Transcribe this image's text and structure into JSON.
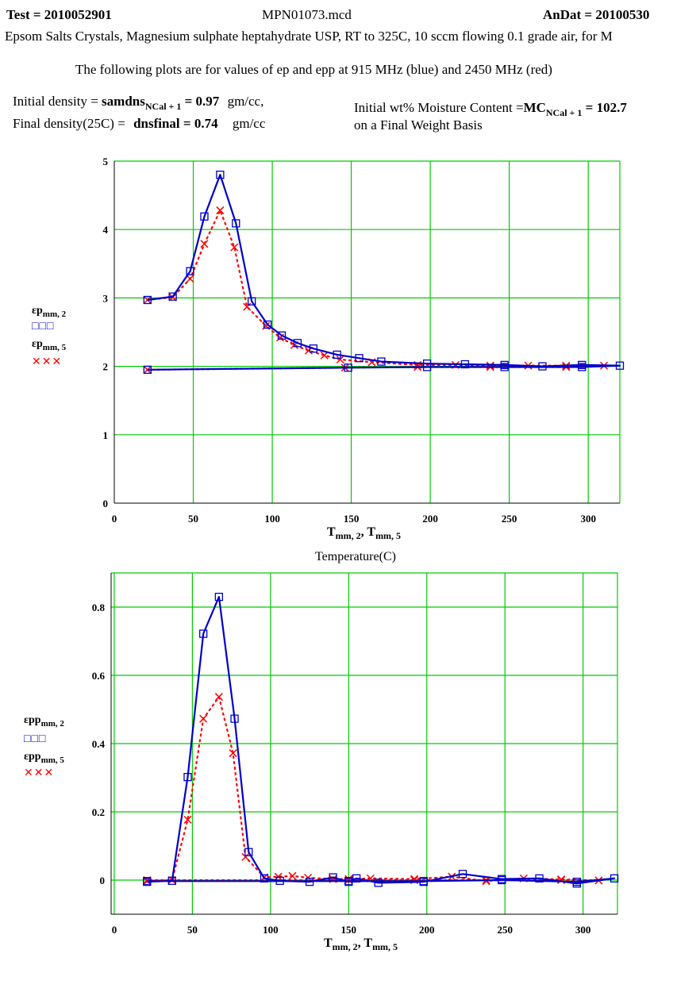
{
  "header": {
    "test_label": "Test = 2010052901",
    "file_name": "MPN01073.mcd",
    "andat_label": "AnDat = 20100530",
    "description": "Epsom Salts Crystals, Magnesium sulphate heptahydrate USP, RT to 325C, 10 sccm flowing 0.1 grade air, for M",
    "plots_note": "The following plots are for values of ep and epp at 915 MHz (blue)  and 2450 MHz (red)"
  },
  "params": {
    "initial_density_label": "Initial density =",
    "initial_density_var": "samdns",
    "initial_density_sub": "NCal + 1",
    "initial_density_value": "= 0.97",
    "initial_density_unit": "gm/cc,",
    "final_density_label": "Final density(25C) =",
    "final_density_var": "dnsfinal",
    "final_density_value": "= 0.74",
    "final_density_unit": "gm/cc",
    "moisture_label": "Initial wt% Moisture Content =",
    "moisture_var": "MC",
    "moisture_sub": "NCal + 1",
    "moisture_value": "= 102.7",
    "moisture_basis": "on a Final Weight Basis"
  },
  "colors": {
    "blue": "#0000cc",
    "red": "#ff0000",
    "grid": "#00cc00"
  },
  "chart_data": [
    {
      "type": "line",
      "xlim": [
        0,
        320
      ],
      "ylim": [
        0,
        5
      ],
      "xticks": [
        0,
        50,
        100,
        150,
        200,
        250,
        300
      ],
      "yticks": [
        0,
        1,
        2,
        3,
        4,
        5
      ],
      "xtick_labels": [
        "0",
        "50",
        "100",
        "150",
        "200",
        "250",
        "300"
      ],
      "ytick_labels": [
        "0",
        "1",
        "2",
        "3",
        "4",
        "5"
      ],
      "xlabel_main": "T",
      "xlabel_sub1": "mm, 2",
      "xlabel_sep": ", T",
      "xlabel_sub2": "mm, 5",
      "xlabel_caption": "Temperature(C)",
      "legend": [
        {
          "name_main": "εp",
          "name_sub": "mm, 2",
          "marker": "□□□"
        },
        {
          "name_main": "εp",
          "name_sub": "mm, 5",
          "marker": "✕✕✕"
        }
      ],
      "series": [
        {
          "name": "915 MHz (blue)",
          "color": "blue",
          "marker": "square",
          "dash": false,
          "x": [
            21,
            37,
            48,
            57,
            67,
            77,
            87,
            97,
            106,
            116,
            126,
            141,
            155,
            169,
            198,
            222,
            247,
            271,
            296,
            320,
            296,
            247,
            198,
            148,
            21
          ],
          "y": [
            2.97,
            3.02,
            3.39,
            4.19,
            4.8,
            4.09,
            2.95,
            2.61,
            2.45,
            2.34,
            2.26,
            2.17,
            2.12,
            2.07,
            2.04,
            2.03,
            2.02,
            2.0,
            2.02,
            2.01,
            1.99,
            1.99,
            1.99,
            1.98,
            1.95
          ]
        },
        {
          "name": "2450 MHz (red)",
          "color": "red",
          "marker": "x",
          "dash": true,
          "x": [
            21,
            37,
            48,
            57,
            67,
            76,
            84,
            96,
            105,
            114,
            123,
            133,
            143,
            163,
            192,
            216,
            238,
            262,
            286,
            310,
            286,
            238,
            192,
            146,
            21
          ],
          "y": [
            2.97,
            3.01,
            3.28,
            3.79,
            4.28,
            3.74,
            2.87,
            2.59,
            2.42,
            2.31,
            2.23,
            2.16,
            2.1,
            2.06,
            2.02,
            2.02,
            2.01,
            2.01,
            2.01,
            2.01,
            1.99,
            1.99,
            1.99,
            1.98,
            1.95
          ]
        }
      ]
    },
    {
      "type": "line",
      "xlim": [
        -2,
        322
      ],
      "ylim": [
        -0.1,
        0.9
      ],
      "xticks": [
        0,
        50,
        100,
        150,
        200,
        250,
        300
      ],
      "yticks": [
        0,
        0.2,
        0.4,
        0.6,
        0.8
      ],
      "xtick_labels": [
        "0",
        "50",
        "100",
        "150",
        "200",
        "250",
        "300"
      ],
      "ytick_labels": [
        "0",
        "0.2",
        "0.4",
        "0.6",
        "0.8"
      ],
      "xlabel_main": "T",
      "xlabel_sub1": "mm, 2",
      "xlabel_sep": ", T",
      "xlabel_sub2": "mm, 5",
      "legend": [
        {
          "name_main": "εpp",
          "name_sub": "mm, 2",
          "marker": "□□□"
        },
        {
          "name_main": "εpp",
          "name_sub": "mm, 5",
          "marker": "✕✕✕"
        }
      ],
      "series": [
        {
          "name": "915 MHz (blue)",
          "color": "blue",
          "marker": "square",
          "dash": false,
          "x": [
            21,
            37,
            47,
            57,
            67,
            77,
            86,
            96,
            106,
            125,
            140,
            150,
            155,
            169,
            198,
            223,
            248,
            272,
            296,
            320,
            296,
            248,
            198,
            150,
            21
          ],
          "y": [
            -0.005,
            -0.002,
            0.302,
            0.722,
            0.83,
            0.473,
            0.082,
            0.005,
            -0.002,
            -0.005,
            0.008,
            -0.005,
            0.005,
            -0.008,
            -0.005,
            0.018,
            0.003,
            0.005,
            -0.01,
            0.005,
            -0.005,
            0.0,
            -0.003,
            -0.003,
            -0.003
          ]
        },
        {
          "name": "2450 MHz (red)",
          "color": "red",
          "marker": "x",
          "dash": true,
          "x": [
            21,
            37,
            47,
            57,
            67,
            76,
            84,
            96,
            105,
            114,
            124,
            140,
            150,
            164,
            192,
            216,
            238,
            262,
            286,
            310,
            286,
            238,
            192,
            150,
            21
          ],
          "y": [
            -0.003,
            0.0,
            0.177,
            0.473,
            0.537,
            0.372,
            0.068,
            0.008,
            0.01,
            0.012,
            0.007,
            0.003,
            0.003,
            0.005,
            0.003,
            0.01,
            -0.003,
            0.005,
            0.002,
            -0.001,
            0.0,
            0.0,
            0.0,
            0.0,
            0.0
          ]
        }
      ]
    }
  ]
}
